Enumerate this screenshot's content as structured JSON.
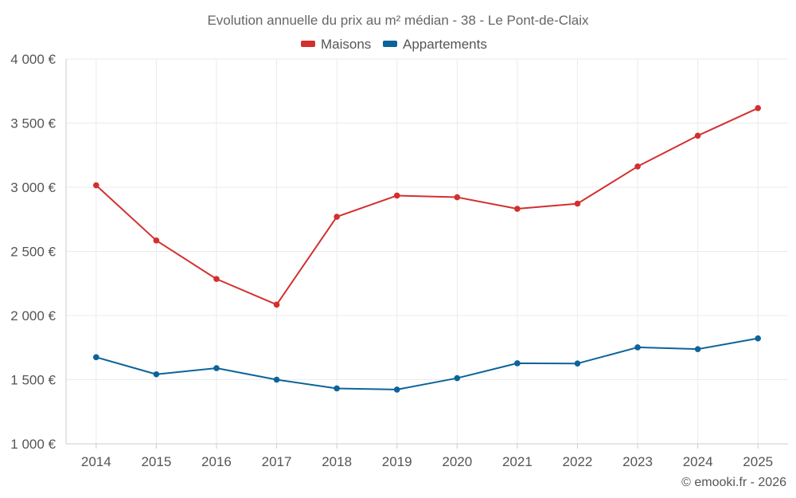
{
  "chart_data": {
    "type": "line",
    "title": "Evolution annuelle du prix au m² médian - 38 - Le Pont-de-Claix",
    "categories": [
      "2014",
      "2015",
      "2016",
      "2017",
      "2018",
      "2019",
      "2020",
      "2021",
      "2022",
      "2023",
      "2024",
      "2025"
    ],
    "series": [
      {
        "name": "Maisons",
        "color": "#d32f2f",
        "values": [
          3015,
          2585,
          2285,
          2085,
          2770,
          2935,
          2922,
          2832,
          2872,
          3162,
          3402,
          3617
        ]
      },
      {
        "name": "Appartements",
        "color": "#0d639a",
        "values": [
          1675,
          1542,
          1590,
          1500,
          1432,
          1423,
          1512,
          1628,
          1626,
          1752,
          1738,
          1822
        ]
      }
    ],
    "ylim": [
      1000,
      4000
    ],
    "yticks": [
      1000,
      1500,
      2000,
      2500,
      3000,
      3500,
      4000
    ],
    "ytick_labels": [
      "1 000 €",
      "1 500 €",
      "2 000 €",
      "2 500 €",
      "3 000 €",
      "3 500 €",
      "4 000 €"
    ],
    "xlabel": "",
    "ylabel": "",
    "grid": true,
    "legend_position": "top-center"
  },
  "credit": "© emooki.fr - 2026"
}
